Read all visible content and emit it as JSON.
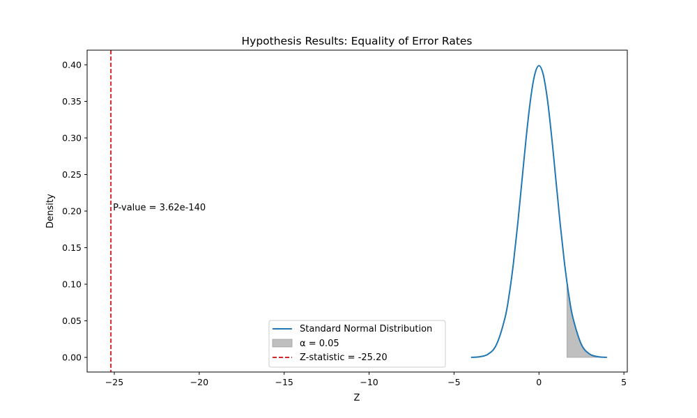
{
  "chart_data": {
    "type": "line",
    "title": "Hypothesis Results: Equality of Error Rates",
    "xlabel": "Z",
    "ylabel": "Density",
    "xlim": [
      -26.6,
      5.2
    ],
    "ylim": [
      -0.02,
      0.42
    ],
    "x_ticks": [
      -25,
      -20,
      -15,
      -10,
      -5,
      0,
      5
    ],
    "x_tick_labels": [
      "−25",
      "−20",
      "−15",
      "−10",
      "−5",
      "0",
      "5"
    ],
    "y_ticks": [
      0.0,
      0.05,
      0.1,
      0.15,
      0.2,
      0.25,
      0.3,
      0.35,
      0.4
    ],
    "y_tick_labels": [
      "0.00",
      "0.05",
      "0.10",
      "0.15",
      "0.20",
      "0.25",
      "0.30",
      "0.35",
      "0.40"
    ],
    "grid": false,
    "legend_position": "bottom-center",
    "series": [
      {
        "name": "Standard Normal Distribution",
        "kind": "line",
        "color": "#1f77b4",
        "x": [
          -4.0,
          -3.5,
          -3.0,
          -2.5,
          -2.0,
          -1.75,
          -1.5,
          -1.25,
          -1.0,
          -0.75,
          -0.5,
          -0.25,
          0.0,
          0.25,
          0.5,
          0.75,
          1.0,
          1.25,
          1.5,
          1.75,
          2.0,
          2.5,
          3.0,
          3.5,
          4.0
        ],
        "y": [
          0.0001,
          0.0009,
          0.0044,
          0.0175,
          0.054,
          0.0863,
          0.1295,
          0.1826,
          0.242,
          0.3011,
          0.3521,
          0.3867,
          0.3989,
          0.3867,
          0.3521,
          0.3011,
          0.242,
          0.1826,
          0.1295,
          0.0863,
          0.054,
          0.0175,
          0.0044,
          0.0009,
          0.0001
        ]
      },
      {
        "name": "α = 0.05",
        "kind": "area",
        "color": "#bfbfbf",
        "x": [
          1.645,
          1.75,
          2.0,
          2.25,
          2.5,
          2.75,
          3.0,
          3.5,
          4.0
        ],
        "y": [
          0.1031,
          0.0863,
          0.054,
          0.0317,
          0.0175,
          0.0091,
          0.0044,
          0.0009,
          0.0001
        ]
      },
      {
        "name": "Z-statistic = -25.20",
        "kind": "vline",
        "color": "#d62728",
        "x": -25.2
      }
    ],
    "annotations": [
      {
        "text": "P-value = 3.62e-140",
        "x": -25.2,
        "y": 0.2
      }
    ]
  }
}
